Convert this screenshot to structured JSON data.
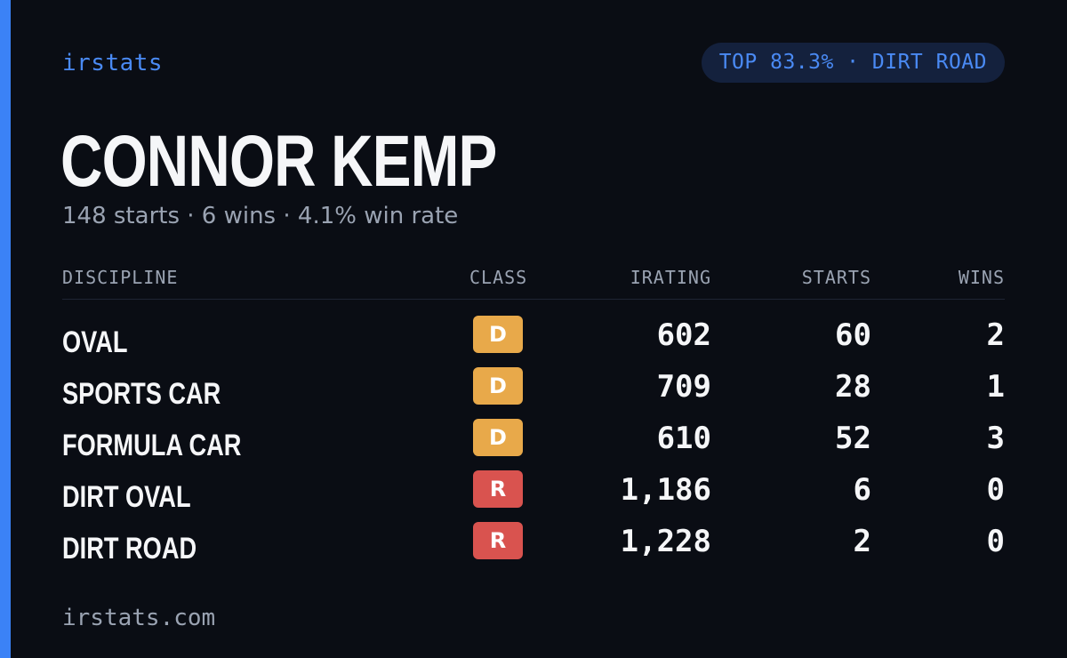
{
  "header": {
    "brand": "irstats",
    "rank_badge": "TOP 83.3% · DIRT ROAD"
  },
  "driver": {
    "name": "CONNOR KEMP",
    "summary": "148 starts · 6 wins · 4.1% win rate"
  },
  "table": {
    "columns": {
      "discipline": "DISCIPLINE",
      "class": "CLASS",
      "irating": "IRATING",
      "starts": "STARTS",
      "wins": "WINS"
    },
    "rows": [
      {
        "discipline": "OVAL",
        "class": "D",
        "irating": "602",
        "starts": "60",
        "wins": "2"
      },
      {
        "discipline": "SPORTS CAR",
        "class": "D",
        "irating": "709",
        "starts": "28",
        "wins": "1"
      },
      {
        "discipline": "FORMULA CAR",
        "class": "D",
        "irating": "610",
        "starts": "52",
        "wins": "3"
      },
      {
        "discipline": "DIRT OVAL",
        "class": "R",
        "irating": "1,186",
        "starts": "6",
        "wins": "0"
      },
      {
        "discipline": "DIRT ROAD",
        "class": "R",
        "irating": "1,228",
        "starts": "2",
        "wins": "0"
      }
    ]
  },
  "footer": {
    "url": "irstats.com"
  },
  "colors": {
    "background": "#0a0d14",
    "accent": "#3b82f6",
    "class_d": "#e8a94a",
    "class_r": "#d9534f"
  }
}
